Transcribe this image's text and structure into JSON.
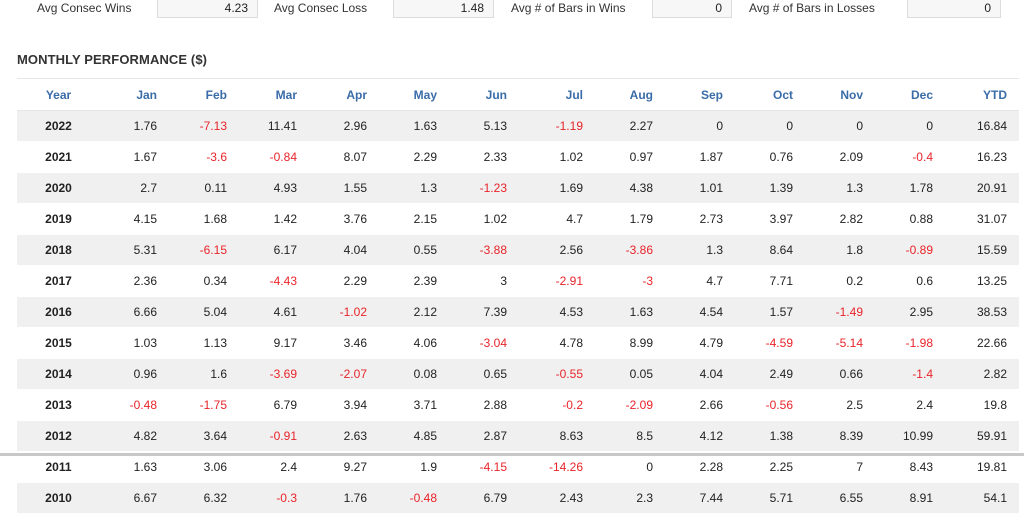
{
  "stats": [
    {
      "label": "Avg Consec Wins",
      "value": "4.23"
    },
    {
      "label": "Avg Consec Loss",
      "value": "1.48"
    },
    {
      "label": "Avg # of Bars in Wins",
      "value": "0"
    },
    {
      "label": "Avg # of Bars in Losses",
      "value": "0"
    }
  ],
  "section_title": "MONTHLY PERFORMANCE ($)",
  "table": {
    "headers": [
      "Year",
      "Jan",
      "Feb",
      "Mar",
      "Apr",
      "May",
      "Jun",
      "Jul",
      "Aug",
      "Sep",
      "Oct",
      "Nov",
      "Dec",
      "YTD"
    ],
    "rows": [
      [
        "2022",
        "1.76",
        "-7.13",
        "11.41",
        "2.96",
        "1.63",
        "5.13",
        "-1.19",
        "2.27",
        "0",
        "0",
        "0",
        "0",
        "16.84"
      ],
      [
        "2021",
        "1.67",
        "-3.6",
        "-0.84",
        "8.07",
        "2.29",
        "2.33",
        "1.02",
        "0.97",
        "1.87",
        "0.76",
        "2.09",
        "-0.4",
        "16.23"
      ],
      [
        "2020",
        "2.7",
        "0.11",
        "4.93",
        "1.55",
        "1.3",
        "-1.23",
        "1.69",
        "4.38",
        "1.01",
        "1.39",
        "1.3",
        "1.78",
        "20.91"
      ],
      [
        "2019",
        "4.15",
        "1.68",
        "1.42",
        "3.76",
        "2.15",
        "1.02",
        "4.7",
        "1.79",
        "2.73",
        "3.97",
        "2.82",
        "0.88",
        "31.07"
      ],
      [
        "2018",
        "5.31",
        "-6.15",
        "6.17",
        "4.04",
        "0.55",
        "-3.88",
        "2.56",
        "-3.86",
        "1.3",
        "8.64",
        "1.8",
        "-0.89",
        "15.59"
      ],
      [
        "2017",
        "2.36",
        "0.34",
        "-4.43",
        "2.29",
        "2.39",
        "3",
        "-2.91",
        "-3",
        "4.7",
        "7.71",
        "0.2",
        "0.6",
        "13.25"
      ],
      [
        "2016",
        "6.66",
        "5.04",
        "4.61",
        "-1.02",
        "2.12",
        "7.39",
        "4.53",
        "1.63",
        "4.54",
        "1.57",
        "-1.49",
        "2.95",
        "38.53"
      ],
      [
        "2015",
        "1.03",
        "1.13",
        "9.17",
        "3.46",
        "4.06",
        "-3.04",
        "4.78",
        "8.99",
        "4.79",
        "-4.59",
        "-5.14",
        "-1.98",
        "22.66"
      ],
      [
        "2014",
        "0.96",
        "1.6",
        "-3.69",
        "-2.07",
        "0.08",
        "0.65",
        "-0.55",
        "0.05",
        "4.04",
        "2.49",
        "0.66",
        "-1.4",
        "2.82"
      ],
      [
        "2013",
        "-0.48",
        "-1.75",
        "6.79",
        "3.94",
        "3.71",
        "2.88",
        "-0.2",
        "-2.09",
        "2.66",
        "-0.56",
        "2.5",
        "2.4",
        "19.8"
      ],
      [
        "2012",
        "4.82",
        "3.64",
        "-0.91",
        "2.63",
        "4.85",
        "2.87",
        "8.63",
        "8.5",
        "4.12",
        "1.38",
        "8.39",
        "10.99",
        "59.91"
      ],
      [
        "2011",
        "1.63",
        "3.06",
        "2.4",
        "9.27",
        "1.9",
        "-4.15",
        "-14.26",
        "0",
        "2.28",
        "2.25",
        "7",
        "8.43",
        "19.81"
      ],
      [
        "2010",
        "6.67",
        "6.32",
        "-0.3",
        "1.76",
        "-0.48",
        "6.79",
        "2.43",
        "2.3",
        "7.44",
        "5.71",
        "6.55",
        "8.91",
        "54.1"
      ]
    ]
  },
  "colors": {
    "header_text": "#3a6ca8",
    "negative": "#e8242a",
    "stripe": "#f0f0f0"
  }
}
